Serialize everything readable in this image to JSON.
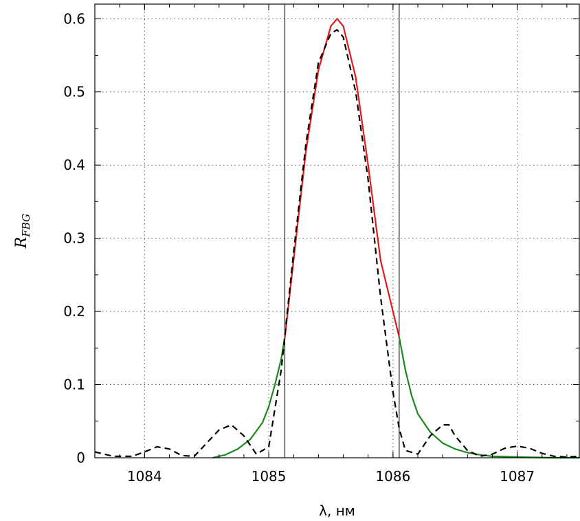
{
  "chart_data": {
    "type": "line",
    "xlabel": "λ, нм",
    "ylabel": {
      "main": "R",
      "sub": "FBG"
    },
    "xlim": [
      1083.6,
      1087.5
    ],
    "ylim": [
      0,
      0.62
    ],
    "x_ticks": [
      1084,
      1085,
      1086,
      1087
    ],
    "y_ticks": [
      0,
      0.1,
      0.2,
      0.3,
      0.4,
      0.5,
      0.6
    ],
    "y_tick_labels": [
      "0",
      "0.1",
      "0.2",
      "0.3",
      "0.4",
      "0.5",
      "0.6"
    ],
    "grid": true,
    "vertical_lines": [
      1085.13,
      1086.05
    ],
    "colors": {
      "center": "#e31a1c",
      "wings": "#1a8a1a",
      "theory": "#000000",
      "vline": "#000000"
    },
    "series": [
      {
        "style": "solid",
        "segments": [
          {
            "color_key": "wings",
            "x": [
              1084.55,
              1084.65,
              1084.75,
              1084.85,
              1084.95,
              1085.0,
              1085.05,
              1085.1,
              1085.13
            ],
            "y": [
              0.0,
              0.004,
              0.012,
              0.025,
              0.048,
              0.07,
              0.1,
              0.135,
              0.165
            ]
          },
          {
            "color_key": "center",
            "x": [
              1085.13,
              1085.2,
              1085.3,
              1085.4,
              1085.5,
              1085.55,
              1085.6,
              1085.7,
              1085.8,
              1085.9,
              1086.0,
              1086.05
            ],
            "y": [
              0.165,
              0.27,
              0.42,
              0.53,
              0.59,
              0.6,
              0.59,
              0.52,
              0.4,
              0.27,
              0.2,
              0.165
            ]
          },
          {
            "color_key": "wings",
            "x": [
              1086.05,
              1086.1,
              1086.15,
              1086.2,
              1086.3,
              1086.4,
              1086.5,
              1086.6,
              1086.7,
              1086.8,
              1087.0,
              1087.3,
              1087.5
            ],
            "y": [
              0.165,
              0.12,
              0.085,
              0.06,
              0.035,
              0.02,
              0.012,
              0.007,
              0.004,
              0.002,
              0.001,
              0.0,
              0.0
            ]
          }
        ]
      },
      {
        "style": "dashed",
        "color_key": "theory",
        "x": [
          1083.6,
          1083.75,
          1083.9,
          1084.0,
          1084.1,
          1084.2,
          1084.3,
          1084.4,
          1084.5,
          1084.6,
          1084.7,
          1084.8,
          1084.9,
          1085.0,
          1085.1,
          1085.2,
          1085.3,
          1085.4,
          1085.5,
          1085.55,
          1085.6,
          1085.7,
          1085.8,
          1085.9,
          1086.0,
          1086.05,
          1086.1,
          1086.2,
          1086.3,
          1086.4,
          1086.45,
          1086.5,
          1086.6,
          1086.7,
          1086.8,
          1086.9,
          1087.0,
          1087.1,
          1087.2,
          1087.3,
          1087.4,
          1087.5
        ],
        "y": [
          0.008,
          0.002,
          0.002,
          0.008,
          0.015,
          0.012,
          0.003,
          0.002,
          0.02,
          0.038,
          0.045,
          0.03,
          0.005,
          0.015,
          0.12,
          0.28,
          0.43,
          0.54,
          0.58,
          0.585,
          0.575,
          0.5,
          0.38,
          0.22,
          0.09,
          0.04,
          0.01,
          0.005,
          0.03,
          0.045,
          0.045,
          0.03,
          0.01,
          0.002,
          0.005,
          0.013,
          0.016,
          0.013,
          0.006,
          0.002,
          0.001,
          0.002
        ]
      }
    ]
  }
}
